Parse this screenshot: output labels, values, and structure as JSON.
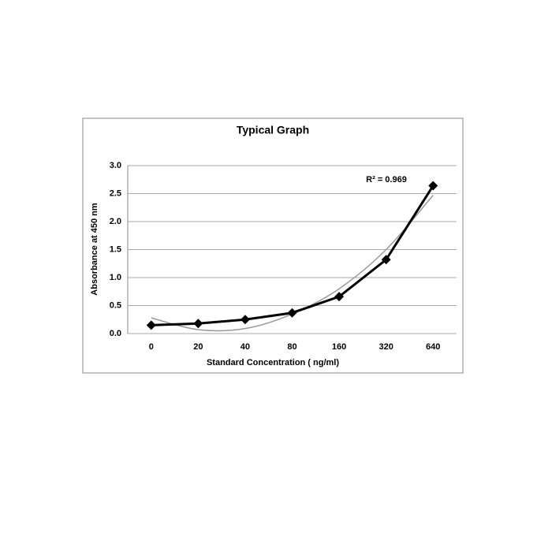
{
  "chart_data": {
    "type": "line",
    "title": "Typical Graph",
    "x_label": "Standard Concentration ( ng/ml)",
    "y_label": "Absorbance at 450 nm",
    "categories": [
      "0",
      "20",
      "40",
      "80",
      "160",
      "320",
      "640"
    ],
    "values": [
      0.15,
      0.18,
      0.25,
      0.37,
      0.66,
      1.32,
      2.64
    ],
    "color": "#000000",
    "trendline_values": [
      0.28,
      0.07,
      0.09,
      0.35,
      0.8,
      1.5,
      2.47
    ],
    "trendline_color": "#999999",
    "annotation": "R² = 0.969",
    "ylim": [
      0,
      3
    ],
    "yticks": [
      {
        "value": 0,
        "label": "0.0"
      },
      {
        "value": 0.5,
        "label": "0.5"
      },
      {
        "value": 1,
        "label": "1.0"
      },
      {
        "value": 1.5,
        "label": "1.5"
      },
      {
        "value": 2,
        "label": "2.0"
      },
      {
        "value": 2.5,
        "label": "2.5"
      },
      {
        "value": 3,
        "label": "3.0"
      }
    ],
    "grid": true
  }
}
